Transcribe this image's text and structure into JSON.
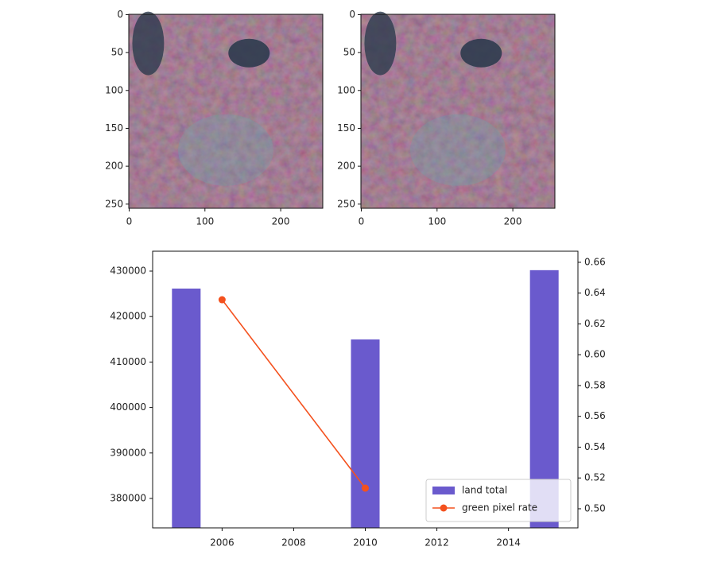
{
  "chart_data": [
    {
      "type": "image",
      "xlim": [
        -0.5,
        255.5
      ],
      "ylim": [
        255.5,
        -0.5
      ],
      "xticks": [
        0,
        100,
        200
      ],
      "yticks": [
        0,
        50,
        100,
        150,
        200,
        250
      ]
    },
    {
      "type": "image",
      "xlim": [
        -0.5,
        255.5
      ],
      "ylim": [
        255.5,
        -0.5
      ],
      "xticks": [
        0,
        100,
        200
      ],
      "yticks": [
        0,
        50,
        100,
        150,
        200,
        250
      ]
    },
    {
      "type": "bar_line",
      "series": [
        {
          "name": "land total",
          "type": "bar",
          "color": "#6a5acd",
          "x": [
            2005,
            2010,
            2015
          ],
          "values": [
            426150,
            414970,
            430200
          ]
        },
        {
          "name": "green pixel rate",
          "type": "line",
          "axis": "y2",
          "color": "#f4511e",
          "x": [
            2006,
            2010
          ],
          "values": [
            0.6357,
            0.5134
          ]
        }
      ],
      "xlim": [
        2004.06,
        2015.94
      ],
      "xticks": [
        2006,
        2008,
        2010,
        2012,
        2014
      ],
      "ylim": [
        373530,
        434370
      ],
      "yticks": [
        380000,
        390000,
        400000,
        410000,
        420000,
        430000
      ],
      "y2lim": [
        0.4876,
        0.6672
      ],
      "y2ticks": [
        {
          "value": 0.5,
          "label": "0.50"
        },
        0.52,
        0.54,
        0.56,
        0.58,
        {
          "value": 0.6,
          "label": "0.60"
        },
        0.62,
        0.64,
        0.66
      ],
      "legend": "lower right"
    }
  ]
}
